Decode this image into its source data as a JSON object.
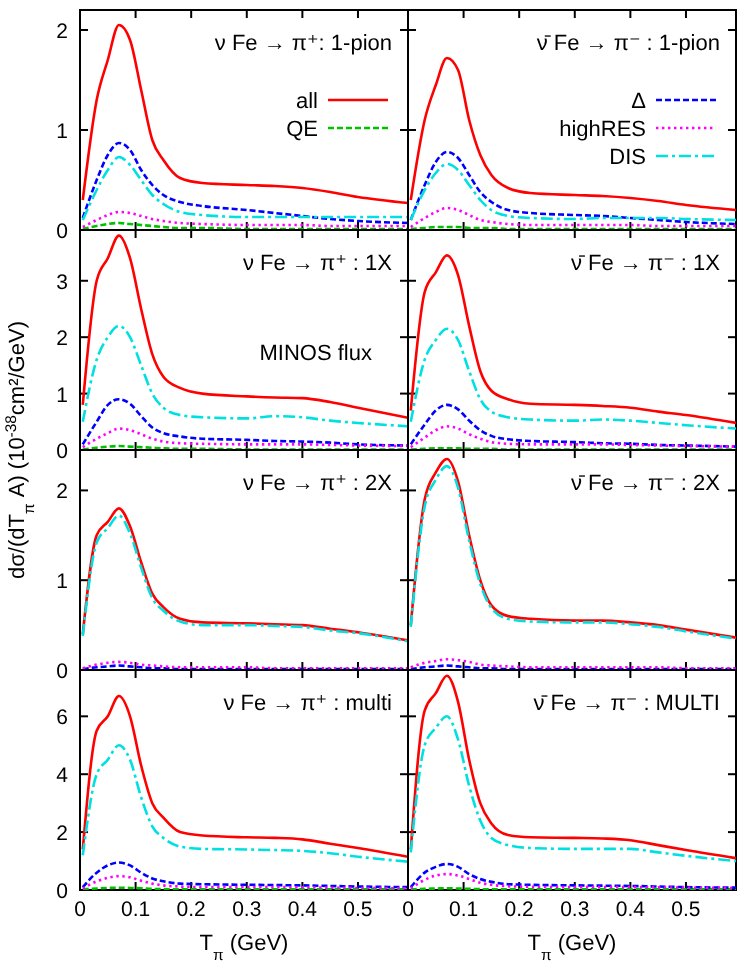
{
  "chart_data": [
    {
      "type": "line",
      "annotations": [
        "ν Fe → π⁺: 1-pion"
      ],
      "x": [
        0.005,
        0.03,
        0.05,
        0.07,
        0.09,
        0.11,
        0.13,
        0.15,
        0.18,
        0.22,
        0.3,
        0.35,
        0.4,
        0.45,
        0.5,
        0.59
      ],
      "xlim": [
        0,
        0.59
      ],
      "xticks": [
        0,
        0.1,
        0.2,
        0.3,
        0.4,
        0.5
      ],
      "ylim": [
        0,
        2.2
      ],
      "yticks": [
        0,
        1,
        2
      ],
      "tick_labels": "y",
      "legend": "right",
      "series": [
        {
          "name": "all",
          "color": "#ff0000",
          "line_style": "solid",
          "values": [
            0.3,
            1.3,
            1.7,
            2.05,
            1.9,
            1.4,
            0.9,
            0.7,
            0.52,
            0.47,
            0.45,
            0.44,
            0.42,
            0.38,
            0.33,
            0.27
          ]
        },
        {
          "name": "QE",
          "color": "#00c000",
          "line_style": "dashed",
          "values": [
            0.01,
            0.04,
            0.06,
            0.07,
            0.06,
            0.05,
            0.04,
            0.03,
            0.02,
            0.02,
            0.01,
            0.01,
            0.01,
            0.01,
            0.01,
            0.01
          ]
        },
        {
          "color": "#0000ff",
          "line_style": "dashed",
          "values": [
            0.12,
            0.5,
            0.75,
            0.87,
            0.8,
            0.6,
            0.45,
            0.35,
            0.28,
            0.24,
            0.2,
            0.17,
            0.14,
            0.11,
            0.09,
            0.07
          ]
        },
        {
          "color": "#ff00ff",
          "line_style": "dotted",
          "values": [
            0.03,
            0.1,
            0.15,
            0.18,
            0.17,
            0.14,
            0.11,
            0.09,
            0.07,
            0.06,
            0.05,
            0.05,
            0.05,
            0.04,
            0.04,
            0.04
          ]
        },
        {
          "color": "#00e0e0",
          "line_style": "dashdot",
          "values": [
            0.1,
            0.4,
            0.6,
            0.73,
            0.65,
            0.5,
            0.35,
            0.26,
            0.18,
            0.15,
            0.13,
            0.13,
            0.13,
            0.13,
            0.13,
            0.13
          ]
        }
      ]
    },
    {
      "type": "line",
      "annotations": [
        "ν̄ Fe → π⁻ : 1-pion"
      ],
      "x": [
        0.005,
        0.03,
        0.05,
        0.07,
        0.09,
        0.11,
        0.13,
        0.15,
        0.18,
        0.22,
        0.3,
        0.35,
        0.4,
        0.45,
        0.5,
        0.59
      ],
      "xlim": [
        0,
        0.59
      ],
      "xticks": [
        0,
        0.1,
        0.2,
        0.3,
        0.4,
        0.5
      ],
      "ylim": [
        0,
        2.2
      ],
      "yticks": [
        0,
        1,
        2
      ],
      "tick_labels": false,
      "legend": "right",
      "series": [
        {
          "color": "#ff0000",
          "line_style": "solid",
          "values": [
            0.3,
            1.1,
            1.45,
            1.72,
            1.6,
            1.1,
            0.75,
            0.55,
            0.42,
            0.37,
            0.35,
            0.34,
            0.32,
            0.29,
            0.25,
            0.2
          ]
        },
        {
          "color": "#00c000",
          "line_style": "dashed",
          "values": [
            0.01,
            0.02,
            0.03,
            0.03,
            0.03,
            0.02,
            0.02,
            0.02,
            0.01,
            0.01,
            0.01,
            0.01,
            0.01,
            0.01,
            0.01,
            0.01
          ]
        },
        {
          "name": "Δ",
          "color": "#0000ff",
          "line_style": "dashed",
          "values": [
            0.1,
            0.45,
            0.68,
            0.78,
            0.72,
            0.55,
            0.38,
            0.28,
            0.2,
            0.17,
            0.15,
            0.14,
            0.12,
            0.1,
            0.08,
            0.06
          ]
        },
        {
          "name": "highRES",
          "color": "#ff00ff",
          "line_style": "dotted",
          "values": [
            0.03,
            0.12,
            0.18,
            0.22,
            0.2,
            0.15,
            0.1,
            0.08,
            0.06,
            0.05,
            0.05,
            0.05,
            0.05,
            0.04,
            0.04,
            0.04
          ]
        },
        {
          "name": "DIS",
          "color": "#00e0e0",
          "line_style": "dashdot",
          "values": [
            0.1,
            0.4,
            0.57,
            0.66,
            0.6,
            0.45,
            0.3,
            0.2,
            0.14,
            0.12,
            0.11,
            0.12,
            0.12,
            0.12,
            0.11,
            0.1
          ]
        }
      ]
    },
    {
      "type": "line",
      "annotations": [
        "ν Fe → π⁺ : 1X",
        "MINOS flux"
      ],
      "ylabel": "dσ/(dT$_{π}$ A)  (10$^{-38}$cm²/GeV)",
      "x": [
        0.005,
        0.03,
        0.05,
        0.07,
        0.09,
        0.11,
        0.13,
        0.15,
        0.18,
        0.22,
        0.3,
        0.35,
        0.4,
        0.45,
        0.5,
        0.59
      ],
      "xlim": [
        0,
        0.59
      ],
      "xticks": [
        0,
        0.1,
        0.2,
        0.3,
        0.4,
        0.5
      ],
      "ylim": [
        0,
        3.9
      ],
      "yticks": [
        0,
        1,
        2,
        3
      ],
      "tick_labels": "y",
      "series": [
        {
          "color": "#ff0000",
          "line_style": "solid",
          "values": [
            0.8,
            3.0,
            3.4,
            3.8,
            3.4,
            2.5,
            1.7,
            1.3,
            1.1,
            1.0,
            0.95,
            0.93,
            0.92,
            0.85,
            0.75,
            0.57
          ]
        },
        {
          "color": "#00c000",
          "line_style": "dashed",
          "values": [
            0.01,
            0.04,
            0.06,
            0.07,
            0.06,
            0.05,
            0.04,
            0.03,
            0.02,
            0.02,
            0.01,
            0.01,
            0.01,
            0.01,
            0.01,
            0.01
          ]
        },
        {
          "color": "#0000ff",
          "line_style": "dashed",
          "values": [
            0.1,
            0.5,
            0.8,
            0.9,
            0.82,
            0.6,
            0.4,
            0.3,
            0.24,
            0.2,
            0.18,
            0.16,
            0.15,
            0.13,
            0.1,
            0.08
          ]
        },
        {
          "color": "#ff00ff",
          "line_style": "dotted",
          "values": [
            0.05,
            0.2,
            0.3,
            0.38,
            0.35,
            0.28,
            0.2,
            0.15,
            0.12,
            0.11,
            0.1,
            0.1,
            0.1,
            0.09,
            0.08,
            0.07
          ]
        },
        {
          "color": "#00e0e0",
          "line_style": "dashdot",
          "values": [
            0.5,
            1.6,
            2.0,
            2.2,
            2.0,
            1.5,
            1.0,
            0.75,
            0.62,
            0.58,
            0.56,
            0.6,
            0.58,
            0.52,
            0.48,
            0.42
          ]
        }
      ]
    },
    {
      "type": "line",
      "annotations": [
        "ν̄ Fe → π⁻ : 1X"
      ],
      "x": [
        0.005,
        0.03,
        0.05,
        0.07,
        0.09,
        0.11,
        0.13,
        0.15,
        0.18,
        0.22,
        0.3,
        0.35,
        0.4,
        0.45,
        0.5,
        0.59
      ],
      "xlim": [
        0,
        0.59
      ],
      "xticks": [
        0,
        0.1,
        0.2,
        0.3,
        0.4,
        0.5
      ],
      "ylim": [
        0,
        3.9
      ],
      "yticks": [
        0,
        1,
        2,
        3
      ],
      "tick_labels": false,
      "series": [
        {
          "color": "#ff0000",
          "line_style": "solid",
          "values": [
            0.7,
            2.8,
            3.15,
            3.45,
            3.1,
            2.2,
            1.4,
            1.05,
            0.9,
            0.82,
            0.8,
            0.78,
            0.75,
            0.68,
            0.62,
            0.48
          ]
        },
        {
          "color": "#00c000",
          "line_style": "dashed",
          "values": [
            0.01,
            0.02,
            0.03,
            0.03,
            0.03,
            0.02,
            0.02,
            0.02,
            0.01,
            0.01,
            0.01,
            0.01,
            0.01,
            0.01,
            0.01,
            0.01
          ]
        },
        {
          "color": "#0000ff",
          "line_style": "dashed",
          "values": [
            0.1,
            0.45,
            0.7,
            0.8,
            0.72,
            0.52,
            0.35,
            0.25,
            0.19,
            0.16,
            0.14,
            0.12,
            0.11,
            0.09,
            0.08,
            0.06
          ]
        },
        {
          "color": "#ff00ff",
          "line_style": "dotted",
          "values": [
            0.05,
            0.22,
            0.35,
            0.42,
            0.38,
            0.28,
            0.2,
            0.14,
            0.11,
            0.1,
            0.1,
            0.1,
            0.09,
            0.08,
            0.07,
            0.06
          ]
        },
        {
          "color": "#00e0e0",
          "line_style": "dashdot",
          "values": [
            0.5,
            1.6,
            1.95,
            2.15,
            1.95,
            1.4,
            0.9,
            0.68,
            0.58,
            0.54,
            0.52,
            0.54,
            0.52,
            0.48,
            0.44,
            0.38
          ]
        }
      ]
    },
    {
      "type": "line",
      "annotations": [
        "ν Fe → π⁺ : 2X"
      ],
      "x": [
        0.005,
        0.03,
        0.05,
        0.07,
        0.09,
        0.11,
        0.13,
        0.15,
        0.18,
        0.22,
        0.3,
        0.35,
        0.4,
        0.45,
        0.5,
        0.59
      ],
      "xlim": [
        0,
        0.59
      ],
      "xticks": [
        0,
        0.1,
        0.2,
        0.3,
        0.4,
        0.5
      ],
      "ylim": [
        0,
        2.45
      ],
      "yticks": [
        0,
        1,
        2
      ],
      "tick_labels": "y",
      "series": [
        {
          "color": "#ff0000",
          "line_style": "solid",
          "values": [
            0.4,
            1.5,
            1.65,
            1.8,
            1.6,
            1.2,
            0.85,
            0.7,
            0.57,
            0.53,
            0.52,
            0.51,
            0.5,
            0.46,
            0.42,
            0.33
          ]
        },
        {
          "color": "#0000ff",
          "line_style": "dashed",
          "values": [
            0.01,
            0.03,
            0.04,
            0.05,
            0.04,
            0.03,
            0.02,
            0.02,
            0.01,
            0.01,
            0.01,
            0.01,
            0.01,
            0.01,
            0.01,
            0.01
          ]
        },
        {
          "color": "#ff00ff",
          "line_style": "dotted",
          "values": [
            0.02,
            0.06,
            0.08,
            0.09,
            0.08,
            0.06,
            0.05,
            0.04,
            0.03,
            0.03,
            0.03,
            0.02,
            0.02,
            0.02,
            0.02,
            0.02
          ]
        },
        {
          "color": "#00e0e0",
          "line_style": "dashdot",
          "values": [
            0.38,
            1.42,
            1.58,
            1.72,
            1.52,
            1.14,
            0.8,
            0.66,
            0.54,
            0.5,
            0.5,
            0.49,
            0.48,
            0.44,
            0.41,
            0.32
          ]
        }
      ]
    },
    {
      "type": "line",
      "annotations": [
        "ν̄ Fe → π⁻ : 2X"
      ],
      "x": [
        0.005,
        0.03,
        0.05,
        0.07,
        0.09,
        0.11,
        0.13,
        0.15,
        0.18,
        0.22,
        0.3,
        0.35,
        0.4,
        0.45,
        0.5,
        0.59
      ],
      "xlim": [
        0,
        0.59
      ],
      "xticks": [
        0,
        0.1,
        0.2,
        0.3,
        0.4,
        0.5
      ],
      "ylim": [
        0,
        2.45
      ],
      "yticks": [
        0,
        1,
        2
      ],
      "tick_labels": false,
      "series": [
        {
          "color": "#ff0000",
          "line_style": "solid",
          "values": [
            0.5,
            1.9,
            2.2,
            2.35,
            2.1,
            1.5,
            1.0,
            0.72,
            0.6,
            0.57,
            0.55,
            0.55,
            0.53,
            0.5,
            0.45,
            0.36
          ]
        },
        {
          "color": "#0000ff",
          "line_style": "dashed",
          "values": [
            0.01,
            0.03,
            0.04,
            0.05,
            0.04,
            0.03,
            0.02,
            0.02,
            0.01,
            0.01,
            0.01,
            0.01,
            0.01,
            0.01,
            0.01,
            0.01
          ]
        },
        {
          "color": "#ff00ff",
          "line_style": "dotted",
          "values": [
            0.03,
            0.08,
            0.1,
            0.12,
            0.11,
            0.09,
            0.06,
            0.05,
            0.04,
            0.03,
            0.03,
            0.03,
            0.03,
            0.03,
            0.02,
            0.02
          ]
        },
        {
          "color": "#00e0e0",
          "line_style": "dashdot",
          "values": [
            0.48,
            1.82,
            2.12,
            2.27,
            2.03,
            1.44,
            0.96,
            0.69,
            0.57,
            0.54,
            0.53,
            0.53,
            0.51,
            0.48,
            0.43,
            0.35
          ]
        }
      ]
    },
    {
      "type": "line",
      "annotations": [
        "ν Fe → π⁺ : multi"
      ],
      "xlabel": "T$_{π}$ (GeV)",
      "x": [
        0.005,
        0.03,
        0.05,
        0.07,
        0.09,
        0.11,
        0.13,
        0.15,
        0.18,
        0.22,
        0.3,
        0.35,
        0.4,
        0.45,
        0.5,
        0.59
      ],
      "xlim": [
        0,
        0.59
      ],
      "xticks": [
        0,
        0.1,
        0.2,
        0.3,
        0.4,
        0.5
      ],
      "ylim": [
        0,
        7.6
      ],
      "yticks": [
        0,
        2,
        4,
        6
      ],
      "series": [
        {
          "color": "#ff0000",
          "line_style": "solid",
          "values": [
            1.4,
            5.5,
            6.0,
            6.7,
            6.0,
            4.3,
            3.0,
            2.5,
            2.0,
            1.88,
            1.82,
            1.8,
            1.75,
            1.6,
            1.45,
            1.15
          ]
        },
        {
          "color": "#00c000",
          "line_style": "dashed",
          "values": [
            0.02,
            0.05,
            0.07,
            0.08,
            0.07,
            0.06,
            0.04,
            0.03,
            0.02,
            0.02,
            0.02,
            0.02,
            0.02,
            0.02,
            0.02,
            0.02
          ]
        },
        {
          "color": "#0000ff",
          "line_style": "dashed",
          "values": [
            0.1,
            0.6,
            0.85,
            0.95,
            0.85,
            0.6,
            0.4,
            0.3,
            0.22,
            0.2,
            0.18,
            0.17,
            0.16,
            0.14,
            0.12,
            0.1
          ]
        },
        {
          "color": "#ff00ff",
          "line_style": "dotted",
          "values": [
            0.05,
            0.3,
            0.42,
            0.48,
            0.44,
            0.32,
            0.22,
            0.16,
            0.12,
            0.1,
            0.1,
            0.1,
            0.09,
            0.08,
            0.07,
            0.06
          ]
        },
        {
          "color": "#00e0e0",
          "line_style": "dashdot",
          "values": [
            1.2,
            4.0,
            4.5,
            5.0,
            4.5,
            3.2,
            2.2,
            1.8,
            1.5,
            1.42,
            1.4,
            1.38,
            1.35,
            1.27,
            1.15,
            0.98
          ]
        }
      ]
    },
    {
      "type": "line",
      "annotations": [
        "ν̄ Fe → π⁻ : MULTI"
      ],
      "xlabel": "T$_{π}$ (GeV)",
      "x": [
        0.005,
        0.03,
        0.05,
        0.07,
        0.09,
        0.11,
        0.13,
        0.15,
        0.18,
        0.22,
        0.3,
        0.35,
        0.4,
        0.45,
        0.5,
        0.59
      ],
      "xlim": [
        0,
        0.59
      ],
      "xticks": [
        0,
        0.1,
        0.2,
        0.3,
        0.4,
        0.5
      ],
      "ylim": [
        0,
        7.6
      ],
      "yticks": [
        0,
        2,
        4,
        6
      ],
      "tick_labels": "x",
      "series": [
        {
          "color": "#ff0000",
          "line_style": "solid",
          "values": [
            1.4,
            6.2,
            6.8,
            7.4,
            6.5,
            4.5,
            3.0,
            2.3,
            1.9,
            1.82,
            1.8,
            1.78,
            1.72,
            1.55,
            1.38,
            1.1
          ]
        },
        {
          "color": "#00c000",
          "line_style": "dashed",
          "values": [
            0.02,
            0.04,
            0.05,
            0.06,
            0.05,
            0.04,
            0.03,
            0.02,
            0.02,
            0.02,
            0.02,
            0.02,
            0.02,
            0.02,
            0.02,
            0.02
          ]
        },
        {
          "color": "#0000ff",
          "line_style": "dashed",
          "values": [
            0.1,
            0.6,
            0.8,
            0.9,
            0.8,
            0.55,
            0.38,
            0.28,
            0.2,
            0.18,
            0.16,
            0.15,
            0.14,
            0.12,
            0.1,
            0.08
          ]
        },
        {
          "color": "#ff00ff",
          "line_style": "dotted",
          "values": [
            0.05,
            0.35,
            0.5,
            0.55,
            0.5,
            0.38,
            0.25,
            0.18,
            0.13,
            0.11,
            0.1,
            0.1,
            0.1,
            0.09,
            0.08,
            0.07
          ]
        },
        {
          "color": "#00e0e0",
          "line_style": "dashdot",
          "values": [
            1.3,
            5.0,
            5.6,
            6.0,
            5.2,
            3.6,
            2.4,
            1.8,
            1.55,
            1.45,
            1.42,
            1.42,
            1.42,
            1.3,
            1.18,
            1.0
          ]
        }
      ]
    }
  ]
}
